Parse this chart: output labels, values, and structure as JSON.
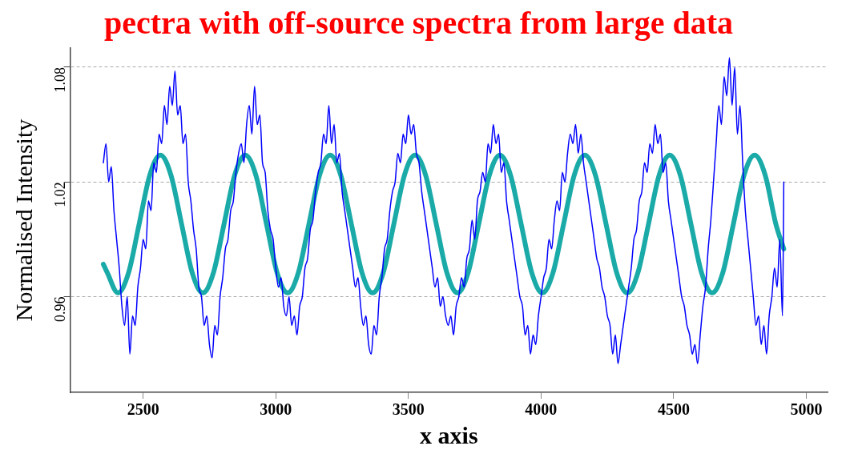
{
  "chart_data": {
    "type": "line",
    "title": "pectra with off-source spectra from large data",
    "xlabel": "x axis",
    "ylabel": "Normalised Intensity",
    "xlim": [
      2225,
      5080
    ],
    "ylim": [
      0.91,
      1.09
    ],
    "xticks": [
      2500,
      3000,
      3500,
      4000,
      4500,
      5000
    ],
    "yticks": [
      0.96,
      1.02,
      1.08
    ],
    "grid": "y",
    "legend": false,
    "marker": "none",
    "line_style": "solid",
    "series": [
      {
        "color": "#0000ff",
        "x": [
          2350,
          2360,
          2370,
          2380,
          2390,
          2400,
          2410,
          2420,
          2430,
          2440,
          2450,
          2460,
          2470,
          2480,
          2490,
          2500,
          2510,
          2520,
          2530,
          2540,
          2550,
          2560,
          2570,
          2580,
          2590,
          2600,
          2610,
          2620,
          2630,
          2640,
          2650,
          2660,
          2670,
          2680,
          2690,
          2700,
          2710,
          2720,
          2730,
          2740,
          2750,
          2760,
          2770,
          2780,
          2790,
          2800,
          2810,
          2820,
          2830,
          2840,
          2850,
          2860,
          2870,
          2880,
          2890,
          2900,
          2910,
          2920,
          2930,
          2940,
          2950,
          2960,
          2970,
          2980,
          2990,
          3000,
          3010,
          3020,
          3030,
          3040,
          3050,
          3060,
          3070,
          3080,
          3090,
          3100,
          3110,
          3120,
          3130,
          3140,
          3150,
          3160,
          3170,
          3180,
          3190,
          3200,
          3210,
          3220,
          3230,
          3240,
          3250,
          3260,
          3270,
          3280,
          3290,
          3300,
          3310,
          3320,
          3330,
          3340,
          3350,
          3360,
          3370,
          3380,
          3390,
          3400,
          3410,
          3420,
          3430,
          3440,
          3450,
          3460,
          3470,
          3480,
          3490,
          3500,
          3510,
          3520,
          3530,
          3540,
          3550,
          3560,
          3570,
          3580,
          3590,
          3600,
          3610,
          3620,
          3630,
          3640,
          3650,
          3660,
          3670,
          3680,
          3690,
          3700,
          3710,
          3720,
          3730,
          3740,
          3750,
          3760,
          3770,
          3780,
          3790,
          3800,
          3810,
          3820,
          3830,
          3840,
          3850,
          3860,
          3870,
          3880,
          3890,
          3900,
          3910,
          3920,
          3930,
          3940,
          3950,
          3960,
          3970,
          3980,
          3990,
          4000,
          4010,
          4020,
          4030,
          4040,
          4050,
          4060,
          4070,
          4080,
          4090,
          4100,
          4110,
          4120,
          4130,
          4140,
          4150,
          4160,
          4170,
          4180,
          4190,
          4200,
          4210,
          4220,
          4230,
          4240,
          4250,
          4260,
          4270,
          4280,
          4290,
          4300,
          4310,
          4320,
          4330,
          4340,
          4350,
          4360,
          4370,
          4380,
          4390,
          4400,
          4410,
          4420,
          4430,
          4440,
          4450,
          4460,
          4470,
          4480,
          4490,
          4500,
          4510,
          4520,
          4530,
          4540,
          4550,
          4560,
          4570,
          4580,
          4590,
          4600,
          4610,
          4620,
          4630,
          4640,
          4650,
          4660,
          4670,
          4680,
          4690,
          4700,
          4710,
          4720,
          4730,
          4740,
          4750,
          4760,
          4770,
          4780,
          4790,
          4800,
          4810,
          4820,
          4830,
          4840,
          4850,
          4860,
          4870,
          4880,
          4890,
          4900,
          4910,
          4915
        ],
        "values": [
          1.03,
          1.04,
          1.02,
          1.028,
          1.005,
          0.99,
          0.975,
          0.955,
          0.945,
          0.96,
          0.93,
          0.95,
          0.945,
          0.965,
          0.975,
          0.99,
          0.985,
          1.01,
          1.005,
          1.03,
          1.025,
          1.045,
          1.04,
          1.06,
          1.05,
          1.07,
          1.06,
          1.078,
          1.055,
          1.06,
          1.04,
          1.045,
          1.02,
          1.01,
          0.995,
          0.985,
          0.965,
          0.96,
          0.945,
          0.95,
          0.935,
          0.928,
          0.945,
          0.94,
          0.96,
          0.97,
          0.985,
          0.99,
          1.005,
          1.01,
          1.025,
          1.035,
          1.04,
          1.03,
          1.05,
          1.06,
          1.045,
          1.07,
          1.05,
          1.055,
          1.03,
          1.025,
          1.005,
          0.995,
          0.99,
          0.975,
          0.965,
          0.97,
          0.955,
          0.95,
          0.96,
          0.945,
          0.95,
          0.94,
          0.955,
          0.96,
          0.975,
          0.98,
          0.995,
          1.0,
          1.015,
          1.025,
          1.03,
          1.045,
          1.04,
          1.06,
          1.04,
          1.05,
          1.03,
          1.035,
          1.015,
          1.005,
          0.995,
          0.985,
          0.975,
          0.965,
          0.97,
          0.955,
          0.945,
          0.95,
          0.935,
          0.93,
          0.945,
          0.94,
          0.96,
          0.97,
          0.985,
          0.99,
          1.005,
          1.015,
          1.02,
          1.035,
          1.03,
          1.045,
          1.04,
          1.055,
          1.045,
          1.05,
          1.035,
          1.03,
          1.015,
          1.005,
          0.995,
          0.985,
          0.975,
          0.965,
          0.97,
          0.955,
          0.96,
          0.95,
          0.945,
          0.95,
          0.94,
          0.955,
          0.96,
          0.97,
          0.965,
          0.98,
          0.985,
          1.0,
          0.99,
          1.01,
          1.015,
          1.025,
          1.02,
          1.04,
          1.035,
          1.05,
          1.04,
          1.045,
          1.025,
          1.03,
          1.01,
          1.0,
          0.99,
          0.98,
          0.97,
          0.96,
          0.955,
          0.94,
          0.945,
          0.93,
          0.94,
          0.935,
          0.95,
          0.96,
          0.97,
          0.975,
          0.99,
          0.985,
          1.0,
          1.01,
          1.005,
          1.025,
          1.02,
          1.035,
          1.045,
          1.04,
          1.05,
          1.035,
          1.045,
          1.03,
          1.02,
          1.01,
          1.0,
          0.99,
          0.98,
          0.975,
          0.965,
          0.96,
          0.95,
          0.945,
          0.93,
          0.94,
          0.925,
          0.935,
          0.945,
          0.955,
          0.965,
          0.975,
          0.99,
          0.995,
          1.01,
          1.015,
          1.03,
          1.025,
          1.04,
          1.035,
          1.05,
          1.04,
          1.045,
          1.025,
          1.03,
          1.01,
          1.0,
          0.99,
          0.98,
          0.97,
          0.96,
          0.955,
          0.945,
          0.94,
          0.93,
          0.935,
          0.925,
          0.94,
          0.955,
          0.965,
          0.985,
          1.0,
          1.02,
          1.04,
          1.06,
          1.05,
          1.075,
          1.065,
          1.085,
          1.06,
          1.08,
          1.045,
          1.06,
          1.03,
          1.005,
          0.99,
          0.975,
          0.96,
          0.945,
          0.95,
          0.935,
          0.945,
          0.93,
          0.95,
          0.96,
          0.975,
          0.965,
          0.99,
          0.95,
          1.02
        ]
      },
      {
        "color": "#1aaaa8",
        "x": [
          2350,
          2365,
          2405,
          2445,
          2485,
          2525,
          2565,
          2605,
          2645,
          2685,
          2725,
          2765,
          2805,
          2845,
          2885,
          2925,
          2965,
          3005,
          3045,
          3085,
          3125,
          3165,
          3205,
          3245,
          3285,
          3325,
          3365,
          3405,
          3445,
          3485,
          3525,
          3565,
          3605,
          3645,
          3685,
          3725,
          3765,
          3805,
          3845,
          3885,
          3925,
          3965,
          4005,
          4045,
          4085,
          4125,
          4165,
          4205,
          4245,
          4285,
          4325,
          4365,
          4405,
          4445,
          4485,
          4525,
          4565,
          4605,
          4645,
          4685,
          4725,
          4765,
          4805,
          4845,
          4885,
          4915
        ],
        "values": [
          0.977,
          0.9725,
          0.962,
          0.9725,
          0.998,
          1.0235,
          1.034,
          1.0235,
          0.998,
          0.9725,
          0.962,
          0.9725,
          0.998,
          1.0235,
          1.034,
          1.0235,
          0.998,
          0.9725,
          0.962,
          0.9725,
          0.998,
          1.0235,
          1.034,
          1.0235,
          0.998,
          0.9725,
          0.962,
          0.9725,
          0.998,
          1.0235,
          1.034,
          1.0235,
          0.998,
          0.9725,
          0.962,
          0.9725,
          0.998,
          1.0235,
          1.034,
          1.0235,
          0.998,
          0.9725,
          0.962,
          0.9725,
          0.998,
          1.0235,
          1.034,
          1.0235,
          0.998,
          0.9725,
          0.962,
          0.9725,
          0.998,
          1.0235,
          1.034,
          1.0235,
          0.998,
          0.9725,
          0.962,
          0.9725,
          0.998,
          1.0235,
          1.034,
          1.0235,
          0.998,
          0.985
        ]
      }
    ]
  }
}
